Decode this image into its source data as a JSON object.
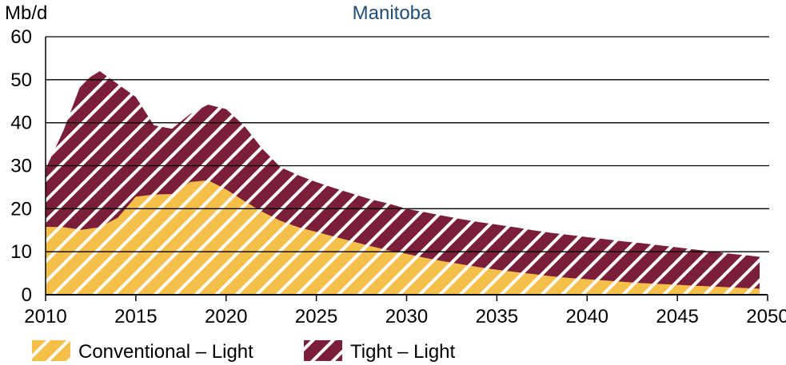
{
  "chart_data": {
    "type": "area",
    "stacked": true,
    "title": "Manitoba",
    "ylabel": "Mb/d",
    "xlabel": "",
    "xlim": [
      2010,
      2050
    ],
    "ylim": [
      0,
      60
    ],
    "x_ticks": [
      2010,
      2015,
      2020,
      2025,
      2030,
      2035,
      2040,
      2045,
      2050
    ],
    "y_ticks": [
      0,
      10,
      20,
      30,
      40,
      50,
      60
    ],
    "grid": "horizontal",
    "legend_position": "bottom-left",
    "series": [
      {
        "name": "Conventional – Light",
        "color": "#f5c04a",
        "pattern": "diagonal-hatch",
        "points": [
          [
            2010,
            15.8
          ],
          [
            2011,
            15.7
          ],
          [
            2012,
            15.1
          ],
          [
            2013,
            15.7
          ],
          [
            2014,
            17.9
          ],
          [
            2015,
            22.8
          ],
          [
            2016,
            23.3
          ],
          [
            2017,
            23.4
          ],
          [
            2018,
            26.2
          ],
          [
            2019,
            26.6
          ],
          [
            2020,
            24.5
          ],
          [
            2021,
            21.8
          ],
          [
            2022,
            19.3
          ],
          [
            2023,
            17.2
          ],
          [
            2024,
            15.7
          ],
          [
            2025,
            14.6
          ],
          [
            2026,
            13.5
          ],
          [
            2027,
            12.4
          ],
          [
            2028,
            11.3
          ],
          [
            2029,
            10.3
          ],
          [
            2030,
            9.5
          ],
          [
            2031,
            8.6
          ],
          [
            2032,
            7.8
          ],
          [
            2033,
            7.1
          ],
          [
            2034,
            6.4
          ],
          [
            2035,
            5.8
          ],
          [
            2036,
            5.3
          ],
          [
            2037,
            4.8
          ],
          [
            2038,
            4.3
          ],
          [
            2039,
            3.9
          ],
          [
            2040,
            3.6
          ],
          [
            2041,
            3.3
          ],
          [
            2042,
            3.0
          ],
          [
            2043,
            2.7
          ],
          [
            2044,
            2.5
          ],
          [
            2045,
            2.3
          ],
          [
            2046,
            2.1
          ],
          [
            2047,
            1.9
          ],
          [
            2048,
            1.7
          ],
          [
            2049,
            1.5
          ],
          [
            2050,
            1.4
          ]
        ]
      },
      {
        "name": "Tight – Light",
        "color": "#7b1e3a",
        "pattern": "diagonal-hatch",
        "points": [
          [
            2010,
            13.4
          ],
          [
            2011,
            22.6
          ],
          [
            2012,
            34.3
          ],
          [
            2013,
            36.3
          ],
          [
            2014,
            31.1
          ],
          [
            2015,
            23.2
          ],
          [
            2016,
            16.1
          ],
          [
            2017,
            15.2
          ],
          [
            2018,
            15.8
          ],
          [
            2019,
            17.6
          ],
          [
            2020,
            18.7
          ],
          [
            2021,
            17.5
          ],
          [
            2022,
            14.7
          ],
          [
            2023,
            12.5
          ],
          [
            2024,
            12.1
          ],
          [
            2025,
            11.6
          ],
          [
            2026,
            11.3
          ],
          [
            2027,
            11.1
          ],
          [
            2028,
            10.9
          ],
          [
            2029,
            10.9
          ],
          [
            2030,
            10.5
          ],
          [
            2031,
            10.6
          ],
          [
            2032,
            10.6
          ],
          [
            2033,
            10.5
          ],
          [
            2034,
            10.5
          ],
          [
            2035,
            10.5
          ],
          [
            2036,
            10.4
          ],
          [
            2037,
            10.2
          ],
          [
            2038,
            10.1
          ],
          [
            2039,
            10.0
          ],
          [
            2040,
            9.8
          ],
          [
            2041,
            9.6
          ],
          [
            2042,
            9.4
          ],
          [
            2043,
            9.3
          ],
          [
            2044,
            9.0
          ],
          [
            2045,
            8.7
          ],
          [
            2046,
            8.4
          ],
          [
            2047,
            8.1
          ],
          [
            2048,
            7.8
          ],
          [
            2049,
            7.6
          ],
          [
            2050,
            7.4
          ]
        ]
      }
    ]
  }
}
